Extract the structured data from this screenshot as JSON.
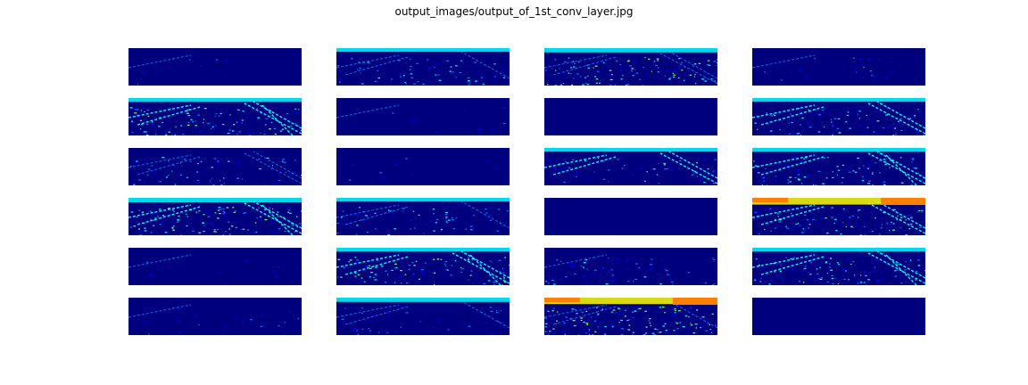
{
  "figure": {
    "title": "output_images/output_of_1st_conv_layer.jpg"
  },
  "grid": {
    "rows": 6,
    "cols": 4
  },
  "colormap": [
    "#00007f",
    "#0000ff",
    "#007fff",
    "#00ffff",
    "#7fff7f",
    "#ffff00",
    "#ff7f00",
    "#ff0000"
  ],
  "feature_maps": [
    {
      "name": "fm-01",
      "intensity": 0.05,
      "lines": 0.1,
      "hot": 0.0
    },
    {
      "name": "fm-02",
      "intensity": 0.35,
      "lines": 0.6,
      "hot": 0.05
    },
    {
      "name": "fm-03",
      "intensity": 0.55,
      "lines": 0.7,
      "hot": 0.2
    },
    {
      "name": "fm-04",
      "intensity": 0.12,
      "lines": 0.05,
      "hot": 0.0
    },
    {
      "name": "fm-05",
      "intensity": 0.55,
      "lines": 0.9,
      "hot": 0.1
    },
    {
      "name": "fm-06",
      "intensity": 0.05,
      "lines": 0.2,
      "hot": 0.0
    },
    {
      "name": "fm-07",
      "intensity": 0.0,
      "lines": 0.0,
      "hot": 0.0
    },
    {
      "name": "fm-08",
      "intensity": 0.45,
      "lines": 0.8,
      "hot": 0.05
    },
    {
      "name": "fm-09",
      "intensity": 0.35,
      "lines": 0.7,
      "hot": 0.0
    },
    {
      "name": "fm-10",
      "intensity": 0.05,
      "lines": 0.0,
      "hot": 0.0
    },
    {
      "name": "fm-11",
      "intensity": 0.3,
      "lines": 0.85,
      "hot": 0.05
    },
    {
      "name": "fm-12",
      "intensity": 0.45,
      "lines": 0.9,
      "hot": 0.1
    },
    {
      "name": "fm-13",
      "intensity": 0.65,
      "lines": 1.0,
      "hot": 0.25
    },
    {
      "name": "fm-14",
      "intensity": 0.35,
      "lines": 0.6,
      "hot": 0.05
    },
    {
      "name": "fm-15",
      "intensity": 0.0,
      "lines": 0.0,
      "hot": 0.0
    },
    {
      "name": "fm-16",
      "intensity": 0.5,
      "lines": 0.8,
      "hot": 0.9
    },
    {
      "name": "fm-17",
      "intensity": 0.05,
      "lines": 0.1,
      "hot": 0.0
    },
    {
      "name": "fm-18",
      "intensity": 0.55,
      "lines": 0.9,
      "hot": 0.1
    },
    {
      "name": "fm-19",
      "intensity": 0.3,
      "lines": 0.2,
      "hot": 0.0
    },
    {
      "name": "fm-20",
      "intensity": 0.5,
      "lines": 0.9,
      "hot": 0.1
    },
    {
      "name": "fm-21",
      "intensity": 0.1,
      "lines": 0.2,
      "hot": 0.0
    },
    {
      "name": "fm-22",
      "intensity": 0.2,
      "lines": 0.6,
      "hot": 0.2
    },
    {
      "name": "fm-23",
      "intensity": 0.7,
      "lines": 0.6,
      "hot": 0.8
    },
    {
      "name": "fm-24",
      "intensity": 0.0,
      "lines": 0.0,
      "hot": 0.0
    }
  ]
}
